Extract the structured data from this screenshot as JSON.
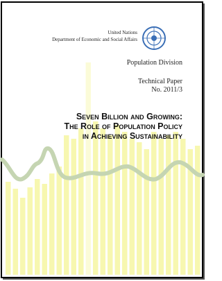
{
  "header": {
    "org": "United Nations",
    "department": "Department of Economic and Social Affairs",
    "division": "Population Division"
  },
  "series": {
    "label": "Technical Paper",
    "number": "No. 2011/3"
  },
  "title": {
    "lines": [
      "Seven Billion and Growing:",
      "The Role of Population Policy",
      "in Achieving Sustainability"
    ]
  }
}
